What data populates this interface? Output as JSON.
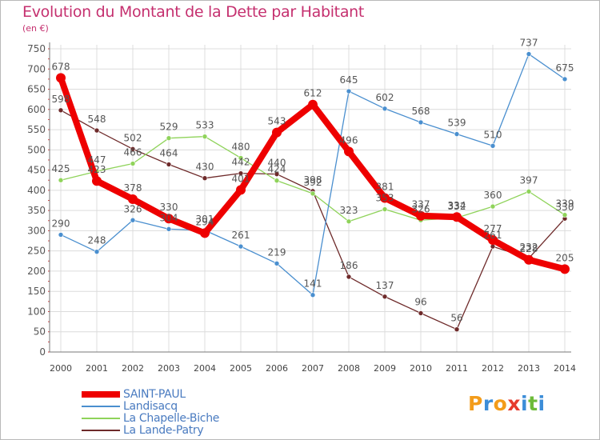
{
  "title": "Evolution du Montant de la Dette par Habitant",
  "subtitle": "(en €)",
  "logo": {
    "letters": [
      "P",
      "r",
      "o",
      "x",
      "i",
      "t",
      "i"
    ],
    "colors": [
      "#f39c1a",
      "#3c8dd8",
      "#f39c1a",
      "#e63b2e",
      "#3c8dd8",
      "#6dbb3a",
      "#3c8dd8"
    ]
  },
  "chart_data": {
    "type": "line",
    "title": "Evolution du Montant de la Dette par Habitant",
    "ylabel": "(en €)",
    "xlabel": "",
    "ylim": [
      0,
      750
    ],
    "yticks": [
      0,
      50,
      100,
      150,
      200,
      250,
      300,
      350,
      400,
      450,
      500,
      550,
      600,
      650,
      700,
      750
    ],
    "x": [
      "2000",
      "2001",
      "2002",
      "2003",
      "2004",
      "2005",
      "2006",
      "2007",
      "2008",
      "2009",
      "2010",
      "2011",
      "2012",
      "2013",
      "2014"
    ],
    "grid": true,
    "legend_position": "bottom-left",
    "series": [
      {
        "name": "La Lande-Patry",
        "color": "#6e2a2a",
        "values": [
          598,
          548,
          502,
          464,
          430,
          442,
          440,
          398,
          186,
          137,
          96,
          56,
          261,
          232,
          330
        ]
      },
      {
        "name": "La Chapelle-Biche",
        "color": "#8fd35a",
        "values": [
          425,
          447,
          466,
          529,
          533,
          480,
          424,
          392,
          323,
          353,
          326,
          332,
          360,
          397,
          339
        ]
      },
      {
        "name": "Landisacq",
        "color": "#4a8fcf",
        "values": [
          290,
          248,
          326,
          304,
          301,
          261,
          219,
          141,
          645,
          602,
          568,
          539,
          510,
          737,
          675
        ]
      },
      {
        "name": "SAINT-PAUL",
        "color": "#ee0000",
        "values": [
          678,
          423,
          378,
          330,
          294,
          401,
          543,
          612,
          496,
          381,
          337,
          334,
          277,
          228,
          205
        ]
      }
    ]
  }
}
